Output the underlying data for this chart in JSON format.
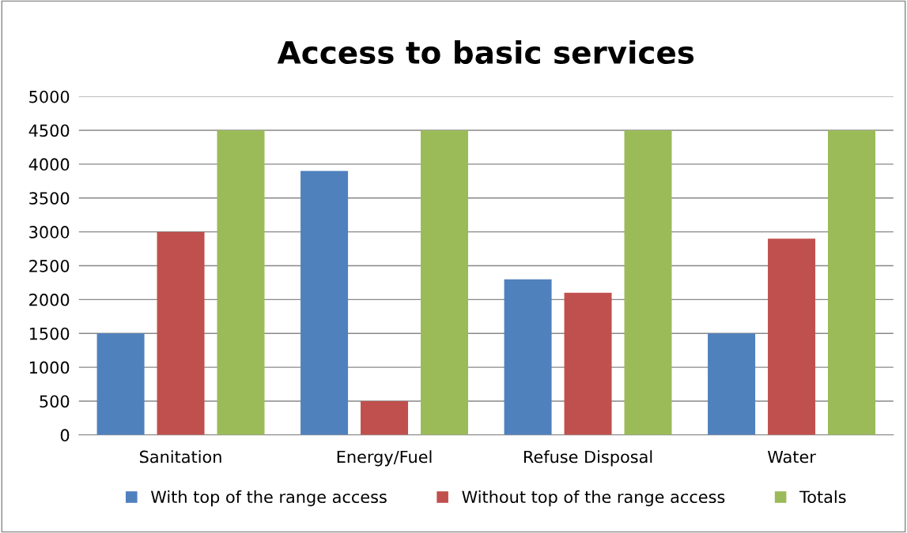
{
  "chart_data": {
    "type": "bar",
    "title": "Access to basic services",
    "categories": [
      "Sanitation",
      "Energy/Fuel",
      "Refuse Disposal",
      "Water"
    ],
    "series": [
      {
        "name": "With top of the range access",
        "color": "#4f81bd",
        "values": [
          1500,
          3900,
          2300,
          1500
        ]
      },
      {
        "name": "Without top of the range access",
        "color": "#c0504d",
        "values": [
          3000,
          500,
          2100,
          2900
        ]
      },
      {
        "name": "Totals",
        "color": "#9bbb59",
        "values": [
          4500,
          4500,
          4500,
          4500
        ]
      }
    ],
    "ylim": [
      0,
      5000
    ],
    "yticks": [
      0,
      500,
      1000,
      1500,
      2000,
      2500,
      3000,
      3500,
      4000,
      4500,
      5000
    ],
    "grid": "y",
    "legend": "bottom"
  }
}
